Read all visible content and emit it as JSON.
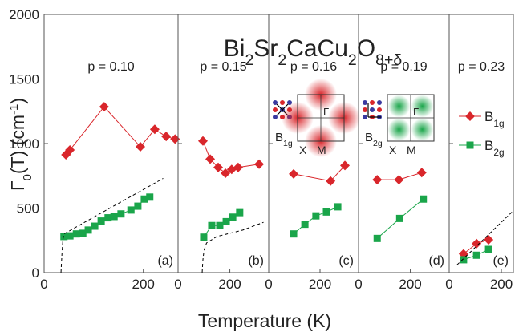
{
  "figure": {
    "title_parts": [
      {
        "text": "Bi"
      },
      {
        "text": "2",
        "sub": true
      },
      {
        "text": "Sr"
      },
      {
        "text": "2",
        "sub": true
      },
      {
        "text": "CaCu"
      },
      {
        "text": "2",
        "sub": true
      },
      {
        "text": "O"
      },
      {
        "text": "8+δ",
        "sub": true
      }
    ],
    "y_label_parts": [
      {
        "text": "Γ"
      },
      {
        "text": "0",
        "sub": true
      },
      {
        "text": "(T)  (cm"
      },
      {
        "text": "-1",
        "sup": true
      },
      {
        "text": ")"
      }
    ],
    "x_label": "Temperature (K)"
  },
  "chart_data": [
    {
      "type": "line",
      "label": "(a)",
      "annotation": "p = 0.10",
      "xlim": [
        0,
        270
      ],
      "xticks": [
        0,
        200
      ],
      "ylim": [
        0,
        2000
      ],
      "yticks": [
        0,
        500,
        1000,
        1500,
        2000
      ],
      "series": [
        {
          "color": "#d9262b",
          "marker": "diamond",
          "x": [
            44,
            52,
            121,
            194,
            223,
            246,
            264
          ],
          "values": [
            913,
            950,
            1285,
            975,
            1110,
            1055,
            1035
          ]
        },
        {
          "color": "#1aa54a",
          "marker": "square",
          "x": [
            40,
            52,
            65,
            78,
            89,
            102,
            115,
            129,
            141,
            155,
            175,
            189,
            202,
            213
          ],
          "values": [
            280,
            285,
            300,
            305,
            330,
            360,
            400,
            425,
            435,
            455,
            485,
            515,
            570,
            585
          ]
        },
        {
          "color": "#000000",
          "dash": true,
          "x": [
            34,
            36,
            38,
            40,
            100,
            150,
            200,
            240
          ],
          "values": [
            0,
            150,
            260,
            300,
            430,
            537,
            644,
            730
          ]
        }
      ]
    },
    {
      "type": "line",
      "label": "(b)",
      "annotation": "p = 0.15",
      "xlim": [
        0,
        350
      ],
      "xticks": [
        0,
        200
      ],
      "ylim": [
        0,
        2000
      ],
      "series": [
        {
          "color": "#d9262b",
          "marker": "diamond",
          "x": [
            96,
            124,
            155,
            183,
            207,
            232,
            313
          ],
          "values": [
            1020,
            880,
            815,
            770,
            800,
            815,
            840
          ]
        },
        {
          "color": "#1aa54a",
          "marker": "square",
          "x": [
            99,
            130,
            161,
            186,
            211,
            238
          ],
          "values": [
            275,
            365,
            365,
            395,
            430,
            465
          ]
        },
        {
          "color": "#000000",
          "dash": true,
          "x": [
            93,
            96,
            100,
            110,
            150,
            250,
            330
          ],
          "values": [
            0,
            100,
            170,
            230,
            280,
            330,
            390
          ]
        }
      ]
    },
    {
      "type": "line",
      "label": "(c)",
      "annotation": "p = 0.16",
      "xlim": [
        0,
        350
      ],
      "xticks": [
        0,
        200
      ],
      "ylim": [
        0,
        2000
      ],
      "inset": {
        "symmetry": "B1g",
        "labels": [
          "X",
          "M",
          "Γ"
        ]
      },
      "series": [
        {
          "color": "#d9262b",
          "marker": "diamond",
          "x": [
            97,
            241,
            297
          ],
          "values": [
            765,
            710,
            830
          ]
        },
        {
          "color": "#1aa54a",
          "marker": "square",
          "x": [
            97,
            141,
            184,
            225,
            269
          ],
          "values": [
            300,
            375,
            440,
            470,
            510
          ]
        }
      ]
    },
    {
      "type": "line",
      "label": "(d)",
      "annotation": "p = 0.19",
      "xlim": [
        0,
        350
      ],
      "xticks": [
        0,
        200
      ],
      "ylim": [
        0,
        2000
      ],
      "inset": {
        "symmetry": "B2g",
        "labels": [
          "X",
          "M",
          "Γ"
        ]
      },
      "series": [
        {
          "color": "#d9262b",
          "marker": "diamond",
          "x": [
            72,
            156,
            244
          ],
          "values": [
            720,
            720,
            775
          ]
        },
        {
          "color": "#1aa54a",
          "marker": "square",
          "x": [
            72,
            159,
            250
          ],
          "values": [
            265,
            420,
            570
          ]
        }
      ]
    },
    {
      "type": "line",
      "label": "(e)",
      "annotation": "p = 0.23",
      "xlim": [
        0,
        246
      ],
      "xticks": [
        0,
        200
      ],
      "ylim": [
        0,
        2000
      ],
      "legend": "upper right",
      "series": [
        {
          "name": "B1g",
          "color": "#d9262b",
          "marker": "diamond",
          "x": [
            55,
            105,
            151
          ],
          "values": [
            145,
            225,
            255
          ]
        },
        {
          "name": "B2g",
          "color": "#1aa54a",
          "marker": "square",
          "x": [
            55,
            105,
            151
          ],
          "values": [
            100,
            135,
            180
          ]
        },
        {
          "color": "#000000",
          "dash": true,
          "x": [
            30,
            246
          ],
          "values": [
            60,
            480
          ]
        }
      ]
    }
  ]
}
